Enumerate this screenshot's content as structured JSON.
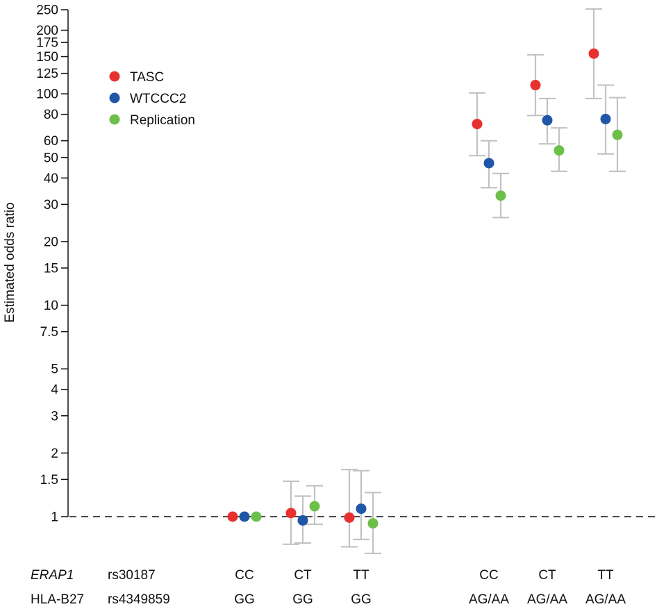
{
  "chart_data": {
    "type": "scatter",
    "ylabel": "Estimated odds ratio",
    "yscale": "log",
    "ylim": [
      0.78,
      250
    ],
    "y_ticks": [
      1,
      1.5,
      2,
      3,
      4,
      5,
      7.5,
      10,
      15,
      20,
      30,
      40,
      50,
      60,
      80,
      100,
      125,
      150,
      175,
      200,
      250
    ],
    "y_tick_labels": [
      "1",
      "1.5",
      "2",
      "3",
      "4",
      "5",
      "7.5",
      "10",
      "15",
      "20",
      "30",
      "40",
      "50",
      "60",
      "80",
      "100",
      "125",
      "150",
      "175",
      "200",
      "250"
    ],
    "reference_line": 1,
    "legend": {
      "position": "top-left"
    },
    "row_labels": [
      {
        "gene": "ERAP1",
        "snp": "rs30187",
        "italic": true
      },
      {
        "gene": "HLA-B27",
        "snp": "rs4349859",
        "italic": false
      }
    ],
    "groups": [
      {
        "erap1": "CC",
        "hla": "GG"
      },
      {
        "erap1": "CT",
        "hla": "GG"
      },
      {
        "erap1": "TT",
        "hla": "GG"
      },
      {
        "erap1": "CC",
        "hla": "AG/AA"
      },
      {
        "erap1": "CT",
        "hla": "AG/AA"
      },
      {
        "erap1": "TT",
        "hla": "AG/AA"
      }
    ],
    "series": [
      {
        "name": "TASC",
        "color": "#e8312f",
        "values": [
          1.0,
          1.04,
          0.99,
          72,
          110,
          155
        ],
        "lower": [
          null,
          0.74,
          0.72,
          51,
          79,
          95
        ],
        "upper": [
          null,
          1.47,
          1.67,
          101,
          153,
          252
        ]
      },
      {
        "name": "WTCCC2",
        "color": "#1f56a8",
        "values": [
          1.0,
          0.96,
          1.09,
          47,
          75,
          76
        ],
        "lower": [
          null,
          0.75,
          0.78,
          36,
          58,
          52
        ],
        "upper": [
          null,
          1.25,
          1.65,
          60,
          95,
          110
        ]
      },
      {
        "name": "Replication",
        "color": "#6cc04a",
        "values": [
          1.0,
          1.12,
          0.93,
          33,
          54,
          64
        ],
        "lower": [
          null,
          0.92,
          0.67,
          26,
          43,
          43
        ],
        "upper": [
          null,
          1.4,
          1.3,
          42,
          69,
          96
        ]
      }
    ]
  }
}
